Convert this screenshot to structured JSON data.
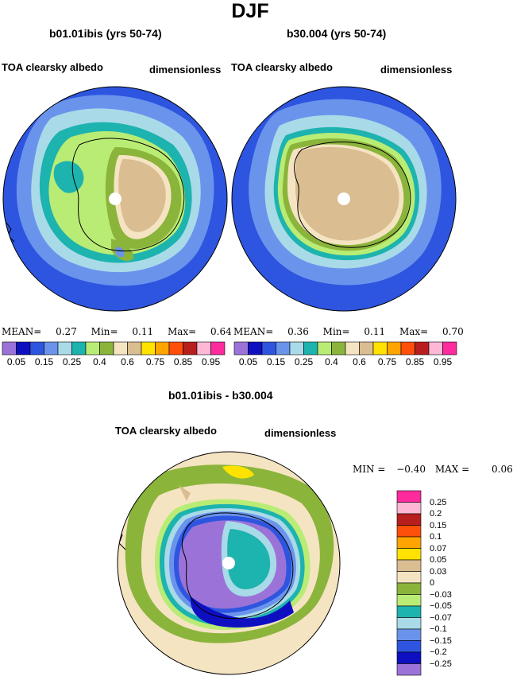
{
  "title": "DJF",
  "colors": {
    "palette": [
      "#9B73D8",
      "#0F0FC2",
      "#2E55DF",
      "#6A94EC",
      "#A9DAE8",
      "#1DB3AE",
      "#B9EC75",
      "#8BB43B",
      "#F5E4C2",
      "#DABD91",
      "#FFE200",
      "#FFA400",
      "#FF4F0A",
      "#B81E1E",
      "#FFB7D6",
      "#FF2A9D"
    ],
    "diff_palette": [
      "#9B73D8",
      "#0F0FC2",
      "#2E55DF",
      "#6A94EC",
      "#A9DAE8",
      "#1DB3AE",
      "#B9EC75",
      "#8BB43B",
      "#F5E4C2",
      "#DABD91",
      "#FFE200",
      "#FFA400",
      "#FF4F0A",
      "#B81E1E",
      "#FFB7D6",
      "#FF2A9D"
    ],
    "land_outline": "#000000"
  },
  "panels": [
    {
      "title": "b01.01ibis (yrs 50-74)",
      "left_label": "TOA clearsky albedo",
      "right_label": "dimensionless",
      "stats": {
        "mean_label": "MEAN=",
        "mean": "0.27",
        "min_label": "Min=",
        "min": "0.11",
        "max_label": "Max=",
        "max": "0.64"
      }
    },
    {
      "title": "b30.004 (yrs 50-74)",
      "left_label": "TOA clearsky albedo",
      "right_label": "dimensionless",
      "stats": {
        "mean_label": "MEAN=",
        "mean": "0.36",
        "min_label": "Min=",
        "min": "0.11",
        "max_label": "Max=",
        "max": "0.70"
      }
    }
  ],
  "colorbar_labels": [
    "0.05",
    "0.15",
    "0.25",
    "0.4",
    "0.6",
    "0.75",
    "0.85",
    "0.95"
  ],
  "diff_panel": {
    "title": "b01.01ibis - b30.004",
    "left_label": "TOA clearsky albedo",
    "right_label": "dimensionless",
    "stats": {
      "min_label": "MIN =",
      "min": "−0.40",
      "max_label": "MAX =",
      "max": "0.06"
    }
  },
  "diff_colorbar_labels": [
    "0.25",
    "0.2",
    "0.15",
    "0.1",
    "0.07",
    "0.05",
    "0.03",
    "0",
    "−0.03",
    "−0.05",
    "−0.07",
    "−0.1",
    "−0.15",
    "−0.2",
    "−0.25"
  ],
  "chart_data": [
    {
      "type": "heatmap",
      "projection": "south polar stereographic",
      "title": "b01.01ibis (yrs 50-74)",
      "variable": "TOA clearsky albedo",
      "units": "dimensionless",
      "levels": [
        0.05,
        0.1,
        0.15,
        0.2,
        0.25,
        0.3,
        0.4,
        0.5,
        0.6,
        0.7,
        0.75,
        0.8,
        0.85,
        0.9,
        0.95
      ],
      "mean": 0.27,
      "min": 0.11,
      "max": 0.64
    },
    {
      "type": "heatmap",
      "projection": "south polar stereographic",
      "title": "b30.004 (yrs 50-74)",
      "variable": "TOA clearsky albedo",
      "units": "dimensionless",
      "levels": [
        0.05,
        0.1,
        0.15,
        0.2,
        0.25,
        0.3,
        0.4,
        0.5,
        0.6,
        0.7,
        0.75,
        0.8,
        0.85,
        0.9,
        0.95
      ],
      "mean": 0.36,
      "min": 0.11,
      "max": 0.7
    },
    {
      "type": "heatmap",
      "projection": "south polar stereographic",
      "title": "b01.01ibis - b30.004",
      "variable": "TOA clearsky albedo",
      "units": "dimensionless",
      "levels": [
        -0.25,
        -0.2,
        -0.15,
        -0.1,
        -0.07,
        -0.05,
        -0.03,
        0,
        0.03,
        0.05,
        0.07,
        0.1,
        0.15,
        0.2,
        0.25
      ],
      "min": -0.4,
      "max": 0.06
    }
  ]
}
